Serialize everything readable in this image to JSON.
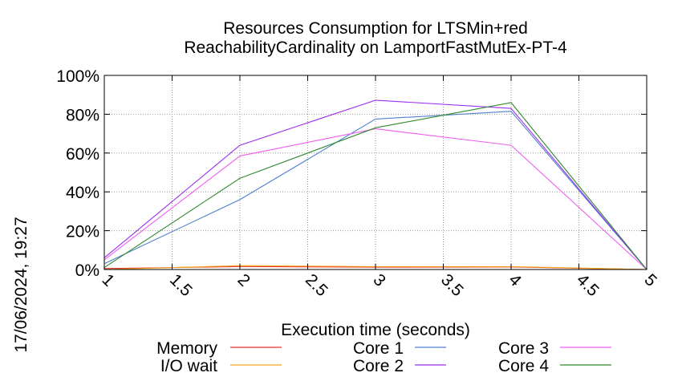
{
  "chart_data": {
    "type": "line",
    "title": "Resources Consumption for LTSMin+red",
    "subtitle": "ReachabilityCardinality on LamportFastMutEx-PT-4",
    "xlabel": "Execution time (seconds)",
    "ylabel": "",
    "xlim": [
      1,
      5
    ],
    "ylim": [
      0,
      100
    ],
    "grid": true,
    "legend_position": "bottom",
    "x_ticks": [
      "1",
      "1.5",
      "2",
      "2.5",
      "3",
      "3.5",
      "4",
      "4.5",
      "5"
    ],
    "y_ticks": [
      "0%",
      "20%",
      "40%",
      "60%",
      "80%",
      "100%"
    ],
    "x": [
      1,
      2,
      3,
      4,
      5
    ],
    "series": [
      {
        "name": "Memory",
        "color": "#e8322b",
        "values": [
          0.5,
          1.5,
          1.2,
          1.3,
          0
        ]
      },
      {
        "name": "I/O wait",
        "color": "#f2a31b",
        "values": [
          0,
          2,
          1.5,
          1.5,
          0
        ]
      },
      {
        "name": "Core 1",
        "color": "#4f7fcf",
        "values": [
          3,
          36,
          77.5,
          81.5,
          0
        ]
      },
      {
        "name": "Core 2",
        "color": "#9a2ff0",
        "values": [
          6,
          64,
          87.2,
          83,
          0
        ]
      },
      {
        "name": "Core 3",
        "color": "#f15cf1",
        "values": [
          5,
          58.5,
          72.5,
          64,
          0
        ]
      },
      {
        "name": "Core 4",
        "color": "#2f8a2f",
        "values": [
          1,
          47,
          73,
          86,
          0
        ]
      }
    ]
  },
  "timestamp": "17/06/2024, 19:27"
}
